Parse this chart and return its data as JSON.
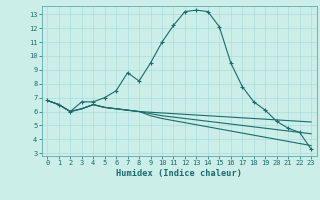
{
  "xlabel": "Humidex (Indice chaleur)",
  "background_color": "#cceee8",
  "grid_color": "#aadddd",
  "line_color": "#1a6b6b",
  "xlim": [
    -0.5,
    23.5
  ],
  "ylim": [
    2.8,
    13.6
  ],
  "yticks": [
    3,
    4,
    5,
    6,
    7,
    8,
    9,
    10,
    11,
    12,
    13
  ],
  "xticks": [
    0,
    1,
    2,
    3,
    4,
    5,
    6,
    7,
    8,
    9,
    10,
    11,
    12,
    13,
    14,
    15,
    16,
    17,
    18,
    19,
    20,
    21,
    22,
    23
  ],
  "tick_fontsize": 5.0,
  "xlabel_fontsize": 6.2,
  "series": [
    {
      "x": [
        0,
        1,
        2,
        3,
        4,
        5,
        6,
        7,
        8,
        9,
        10,
        11,
        12,
        13,
        14,
        15,
        16,
        17,
        18,
        19,
        20,
        21,
        22,
        23
      ],
      "y": [
        6.8,
        6.5,
        6.0,
        6.7,
        6.7,
        7.0,
        7.5,
        8.8,
        8.2,
        9.5,
        11.0,
        12.2,
        13.2,
        13.3,
        13.2,
        12.1,
        9.5,
        7.8,
        6.7,
        6.1,
        5.3,
        4.8,
        4.5,
        3.3
      ],
      "marker": "+"
    },
    {
      "x": [
        0,
        1,
        2,
        3,
        4,
        5,
        6,
        7,
        8,
        9,
        10,
        11,
        12,
        13,
        14,
        15,
        16,
        17,
        18,
        19,
        20,
        21,
        22,
        23
      ],
      "y": [
        6.8,
        6.5,
        6.0,
        6.2,
        6.5,
        6.3,
        6.2,
        6.1,
        6.0,
        5.95,
        5.9,
        5.85,
        5.8,
        5.75,
        5.7,
        5.65,
        5.6,
        5.55,
        5.5,
        5.45,
        5.4,
        5.35,
        5.3,
        5.25
      ],
      "marker": null
    },
    {
      "x": [
        0,
        1,
        2,
        3,
        4,
        5,
        6,
        7,
        8,
        9,
        10,
        11,
        12,
        13,
        14,
        15,
        16,
        17,
        18,
        19,
        20,
        21,
        22,
        23
      ],
      "y": [
        6.8,
        6.5,
        6.0,
        6.2,
        6.5,
        6.3,
        6.2,
        6.1,
        6.0,
        5.85,
        5.7,
        5.6,
        5.5,
        5.4,
        5.3,
        5.2,
        5.1,
        5.0,
        4.9,
        4.8,
        4.7,
        4.6,
        4.5,
        4.4
      ],
      "marker": null
    },
    {
      "x": [
        0,
        1,
        2,
        3,
        4,
        5,
        6,
        7,
        8,
        9,
        10,
        11,
        12,
        13,
        14,
        15,
        16,
        17,
        18,
        19,
        20,
        21,
        22,
        23
      ],
      "y": [
        6.8,
        6.5,
        6.0,
        6.2,
        6.5,
        6.3,
        6.2,
        6.1,
        6.0,
        5.7,
        5.5,
        5.35,
        5.2,
        5.05,
        4.9,
        4.75,
        4.6,
        4.45,
        4.3,
        4.15,
        4.0,
        3.85,
        3.7,
        3.55
      ],
      "marker": null
    }
  ]
}
